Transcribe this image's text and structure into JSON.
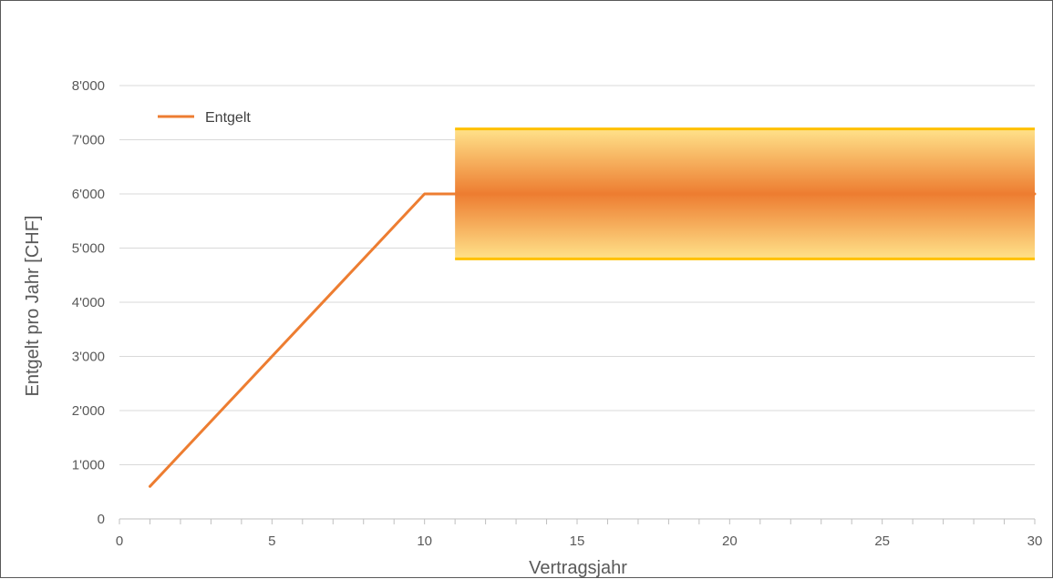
{
  "chart_data": {
    "type": "line",
    "title": "",
    "xlabel": "Vertragsjahr",
    "ylabel": "Entgelt  pro Jahr [CHF]",
    "xlim": [
      0,
      30
    ],
    "ylim": [
      0,
      8000
    ],
    "x_ticks": [
      0,
      5,
      10,
      15,
      20,
      25,
      30
    ],
    "x_tick_labels": [
      "0",
      "5",
      "10",
      "15",
      "20",
      "25",
      "30"
    ],
    "y_ticks": [
      0,
      1000,
      2000,
      3000,
      4000,
      5000,
      6000,
      7000,
      8000
    ],
    "y_tick_labels": [
      "0",
      "1'000",
      "2'000",
      "3'000",
      "4'000",
      "5'000",
      "6'000",
      "7'000",
      "8'000"
    ],
    "grid": "horizontal",
    "legend_position": "top-left",
    "series": [
      {
        "name": "Entgelt",
        "color": "#ED7D31",
        "points": [
          [
            1,
            600
          ],
          [
            10,
            6000
          ],
          [
            30,
            6000
          ]
        ]
      }
    ],
    "band": {
      "x_range": [
        11,
        30
      ],
      "y_range": [
        4800,
        7200
      ],
      "center": 6000,
      "edge_color": "#FFC000",
      "fill_edge_color": "#FFE28A",
      "fill_center_color": "#ED7D31"
    }
  }
}
